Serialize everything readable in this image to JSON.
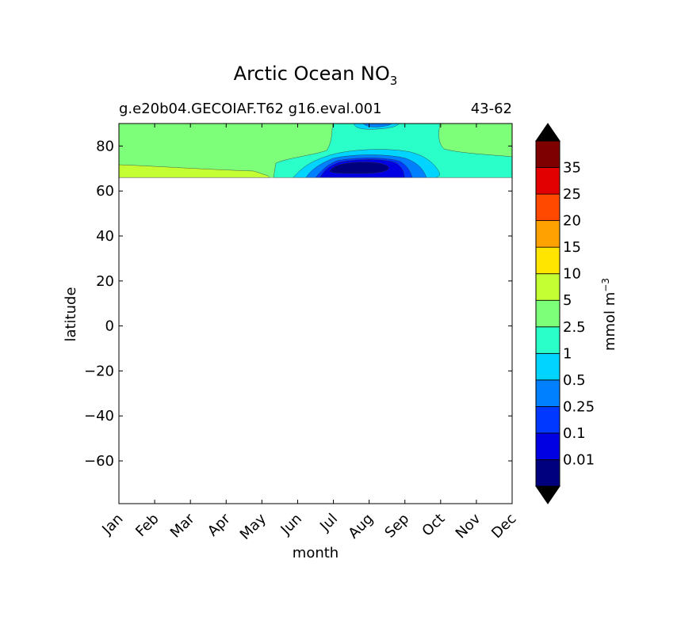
{
  "chart_data": {
    "type": "heatmap",
    "title_main": "Arctic Ocean NO",
    "title_sub": "3",
    "case_label": "g.e20b04.GECOIAF.T62 g16.eval.001",
    "years_label": "43-62",
    "xlabel": "month",
    "ylabel": "latitude",
    "x_categories": [
      "Jan",
      "Feb",
      "Mar",
      "Apr",
      "May",
      "Jun",
      "Jul",
      "Aug",
      "Sep",
      "Oct",
      "Nov",
      "Dec"
    ],
    "y_ticks": [
      {
        "value": 80,
        "label": "80"
      },
      {
        "value": 60,
        "label": "60"
      },
      {
        "value": 40,
        "label": "40"
      },
      {
        "value": 20,
        "label": "20"
      },
      {
        "value": 0,
        "label": "0"
      },
      {
        "value": -20,
        "label": "−20"
      },
      {
        "value": -40,
        "label": "−40"
      },
      {
        "value": -60,
        "label": "−60"
      }
    ],
    "ylim": [
      -79,
      90
    ],
    "data_lat_range": [
      66,
      90
    ],
    "colorbar": {
      "label_base": "mmol m",
      "label_exp": "−3",
      "extend": "both",
      "levels": [
        "0.01",
        "0.1",
        "0.25",
        "0.5",
        "1",
        "2.5",
        "5",
        "10",
        "15",
        "20",
        "25",
        "35"
      ],
      "colors": [
        "#00007f",
        "#0000e3",
        "#0038ff",
        "#0080ff",
        "#00d4ff",
        "#2bffc9",
        "#7dff7a",
        "#c4ff33",
        "#ffe500",
        "#ffa100",
        "#ff4800",
        "#e30000",
        "#7f0000"
      ],
      "under_color": "#000000",
      "over_color": "#000000"
    },
    "fields": [
      {
        "name": "background (2.5-5)",
        "color_index": 6
      },
      {
        "name": "southern band (5-10)",
        "color_index": 7
      },
      {
        "name": "summer depletion (1-2.5)",
        "color_index": 5
      },
      {
        "name": "summer depletion (0.5-1)",
        "color_index": 4
      },
      {
        "name": "summer depletion (0.25-0.5)",
        "color_index": 3
      },
      {
        "name": "summer depletion (0.1-0.25)",
        "color_index": 2
      },
      {
        "name": "summer depletion (0.01-0.1)",
        "color_index": 1
      },
      {
        "name": "summer minimum (<0.01)",
        "color_index": 0
      }
    ]
  }
}
